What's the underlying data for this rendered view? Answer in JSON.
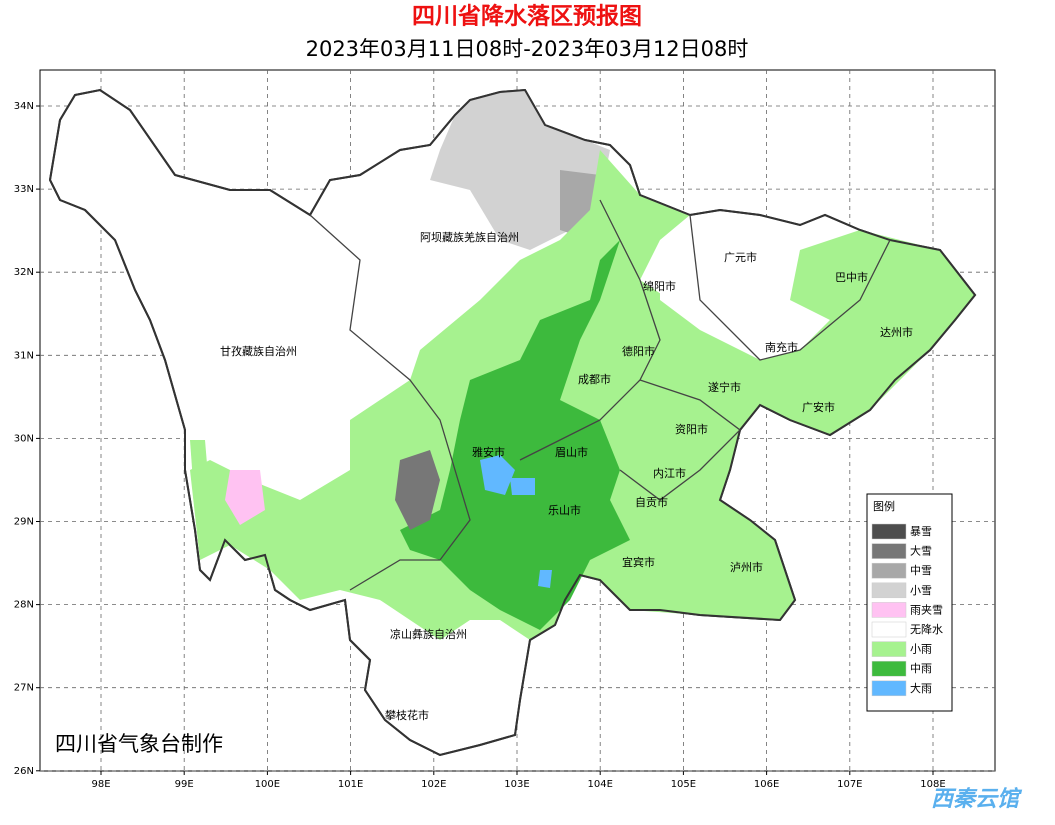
{
  "header": {
    "title": "四川省降水落区预报图",
    "subtitle": "2023年03月11日08时-2023年03月12日08时"
  },
  "axes": {
    "lon_ticks": [
      "98E",
      "99E",
      "100E",
      "101E",
      "102E",
      "103E",
      "104E",
      "105E",
      "106E",
      "107E",
      "108E"
    ],
    "lat_ticks": [
      "34N",
      "33N",
      "32N",
      "31N",
      "30N",
      "29N",
      "28N",
      "27N",
      "26N"
    ]
  },
  "regions": [
    "阿坝藏族羌族自治州",
    "广元市",
    "巴中市",
    "绵阳市",
    "达州市",
    "甘孜藏族自治州",
    "德阳市",
    "南充市",
    "成都市",
    "遂宁市",
    "广安市",
    "资阳市",
    "雅安市",
    "眉山市",
    "内江市",
    "自贡市",
    "乐山市",
    "宜宾市",
    "泸州市",
    "凉山彝族自治州",
    "攀枝花市"
  ],
  "legend": {
    "title": "图例",
    "items": [
      {
        "label": "暴雪",
        "color": "#4d4d4d"
      },
      {
        "label": "大雪",
        "color": "#777777"
      },
      {
        "label": "中雪",
        "color": "#a8a8a8"
      },
      {
        "label": "小雪",
        "color": "#d2d2d2"
      },
      {
        "label": "雨夹雪",
        "color": "#ffc2f2"
      },
      {
        "label": "无降水",
        "color": "#ffffff"
      },
      {
        "label": "小雨",
        "color": "#a6f28f"
      },
      {
        "label": "中雨",
        "color": "#3dba3d"
      },
      {
        "label": "大雨",
        "color": "#61b8ff"
      }
    ]
  },
  "credit": "四川省气象台制作",
  "watermark": "西秦云馆"
}
